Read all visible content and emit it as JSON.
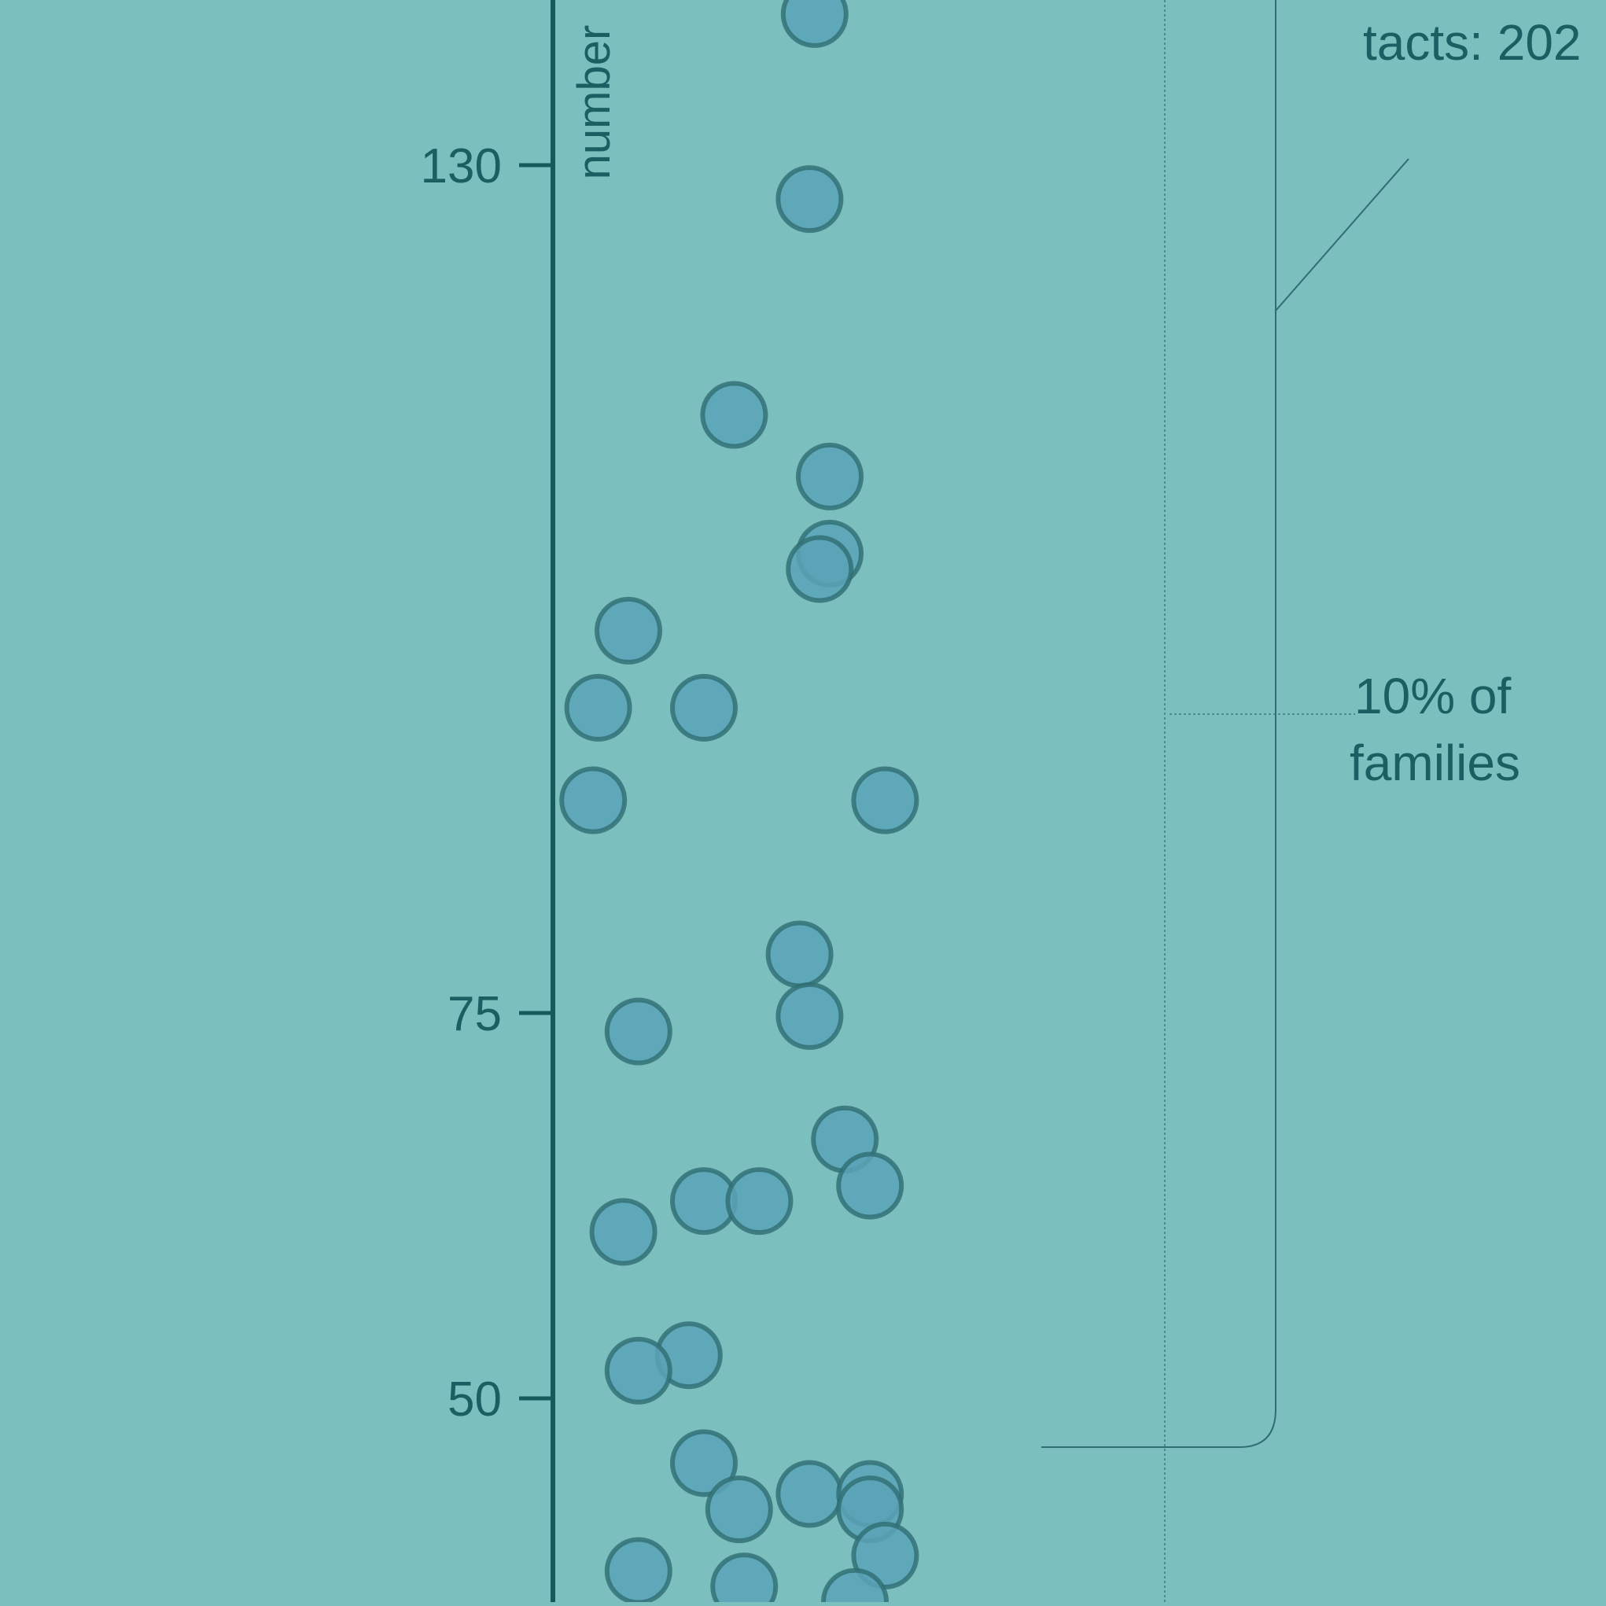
{
  "chart_data": {
    "type": "scatter",
    "title": "",
    "xlabel": "",
    "ylabel": "number",
    "y_ticks": [
      130,
      75,
      50
    ],
    "ylim": [
      40.6,
      140.6
    ],
    "grid": false,
    "legend": "none",
    "points": [
      {
        "x": 0.52,
        "y": 139.8
      },
      {
        "x": 0.51,
        "y": 127.8
      },
      {
        "x": 0.36,
        "y": 113.8
      },
      {
        "x": 0.55,
        "y": 109.8
      },
      {
        "x": 0.55,
        "y": 104.8
      },
      {
        "x": 0.53,
        "y": 103.8
      },
      {
        "x": 0.15,
        "y": 99.8
      },
      {
        "x": 0.09,
        "y": 94.8
      },
      {
        "x": 0.3,
        "y": 94.8
      },
      {
        "x": 0.08,
        "y": 88.8
      },
      {
        "x": 0.66,
        "y": 88.8
      },
      {
        "x": 0.49,
        "y": 78.8
      },
      {
        "x": 0.51,
        "y": 74.8
      },
      {
        "x": 0.17,
        "y": 73.8
      },
      {
        "x": 0.58,
        "y": 66.8
      },
      {
        "x": 0.63,
        "y": 63.8
      },
      {
        "x": 0.3,
        "y": 62.8
      },
      {
        "x": 0.41,
        "y": 62.8
      },
      {
        "x": 0.14,
        "y": 60.8
      },
      {
        "x": 0.27,
        "y": 52.8
      },
      {
        "x": 0.17,
        "y": 51.8
      },
      {
        "x": 0.3,
        "y": 45.8
      },
      {
        "x": 0.37,
        "y": 42.8
      },
      {
        "x": 0.51,
        "y": 43.8
      },
      {
        "x": 0.63,
        "y": 43.8
      },
      {
        "x": 0.63,
        "y": 42.8
      },
      {
        "x": 0.66,
        "y": 39.8
      },
      {
        "x": 0.17,
        "y": 38.8
      },
      {
        "x": 0.38,
        "y": 37.8
      },
      {
        "x": 0.6,
        "y": 36.8
      }
    ],
    "annotations": [
      {
        "id": "contacts",
        "text": "tacts: 202"
      },
      {
        "id": "families",
        "lines": [
          "10% of",
          "families"
        ]
      }
    ],
    "colors": {
      "background": "#7bbfbf",
      "point_fill": "#5aa3b7",
      "point_stroke": "#2f6e73",
      "axis": "#175a5c",
      "text": "#1a5f61",
      "guide": "#3d7d7f"
    }
  }
}
